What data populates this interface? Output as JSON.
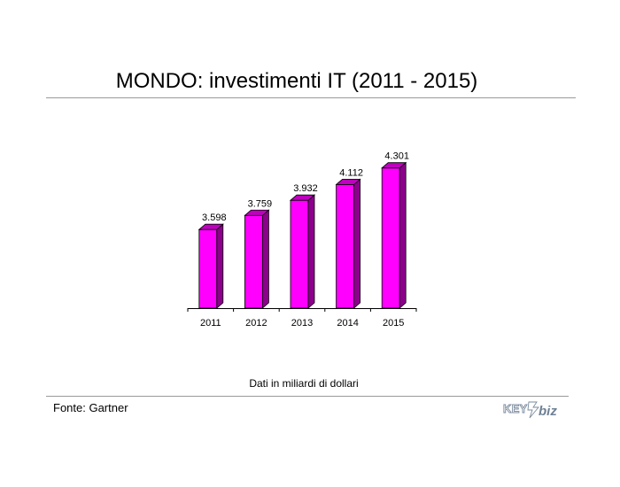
{
  "page": {
    "title": "MONDO: investimenti IT (2011 - 2015)",
    "unit_note": "Dati in miliardi di dollari",
    "source": "Fonte: Gartner",
    "logo_text": "KEY4biz"
  },
  "chart_data": {
    "type": "bar",
    "style": "3d",
    "title": "MONDO: investimenti IT (2011 - 2015)",
    "categories": [
      "2011",
      "2012",
      "2013",
      "2014",
      "2015"
    ],
    "values": [
      3598,
      3759,
      3932,
      4112,
      4301
    ],
    "data_labels": [
      "3.598",
      "3.759",
      "3.932",
      "4.112",
      "4.301"
    ],
    "ylabel": "",
    "xlabel": "",
    "ylim": [
      2700,
      4500
    ],
    "grid": false,
    "legend": "none",
    "colors": {
      "front": "#ff00ff",
      "side": "#8c008c",
      "top": "#bf00bf",
      "axis": "#000000"
    }
  }
}
